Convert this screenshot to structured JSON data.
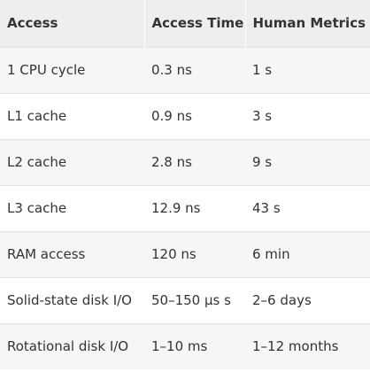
{
  "table": {
    "headers": [
      "Access",
      "Access Time",
      "Human Metrics"
    ],
    "rows": [
      [
        "1 CPU cycle",
        "0.3 ns",
        "1 s"
      ],
      [
        "L1 cache",
        "0.9 ns",
        "3 s"
      ],
      [
        "L2 cache",
        "2.8 ns",
        "9 s"
      ],
      [
        "L3 cache",
        "12.9 ns",
        "43 s"
      ],
      [
        "RAM access",
        "120 ns",
        "6 min"
      ],
      [
        "Solid-state disk I/O",
        "50–150 μs s",
        "2–6 days"
      ],
      [
        "Rotational disk I/O",
        "1–10 ms",
        "1–12 months"
      ]
    ]
  }
}
